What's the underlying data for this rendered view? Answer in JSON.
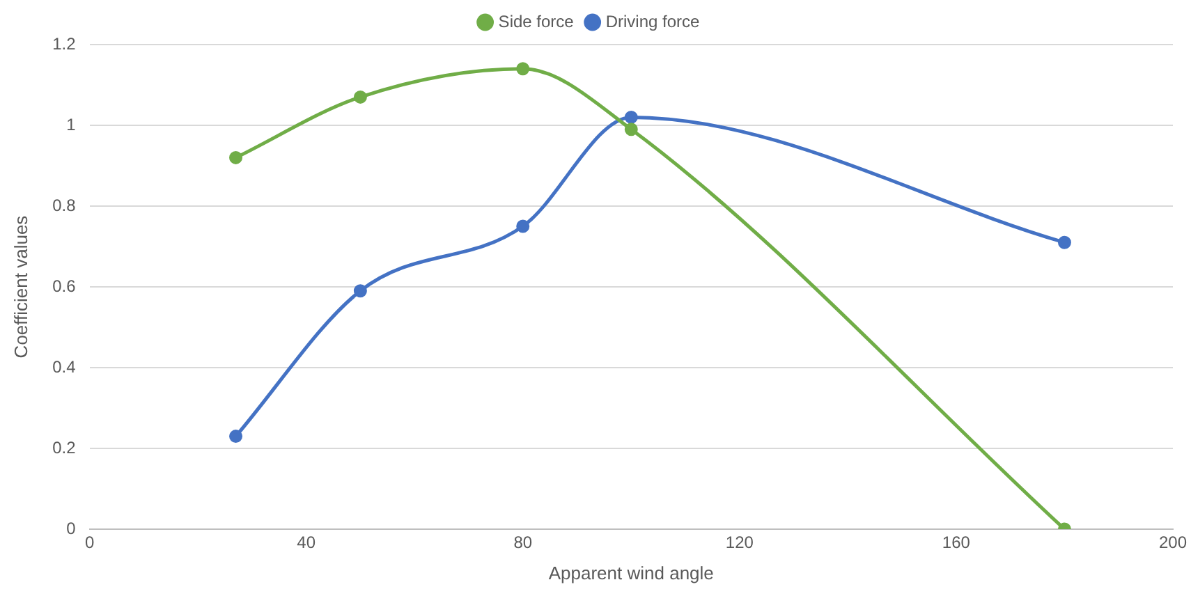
{
  "chart_data": {
    "type": "line",
    "xlabel": "Apparent wind angle",
    "ylabel": "Coefficient values",
    "x": [
      27,
      50,
      80,
      100,
      180
    ],
    "series": [
      {
        "name": "Side force",
        "color": "#70ad47",
        "values": [
          0.92,
          1.07,
          1.14,
          0.99,
          0
        ]
      },
      {
        "name": "Driving force",
        "color": "#4472c4",
        "values": [
          0.23,
          0.59,
          0.75,
          1.02,
          0.71
        ]
      }
    ],
    "xlim": [
      0,
      200
    ],
    "xticks": [
      0,
      40,
      80,
      120,
      160,
      200
    ],
    "ylim": [
      0,
      1.2
    ],
    "yticks": [
      0,
      0.2,
      0.4,
      0.6,
      0.8,
      1,
      1.2
    ],
    "grid": "y",
    "legend": "top",
    "marker": "circle",
    "line_style": "solid"
  }
}
